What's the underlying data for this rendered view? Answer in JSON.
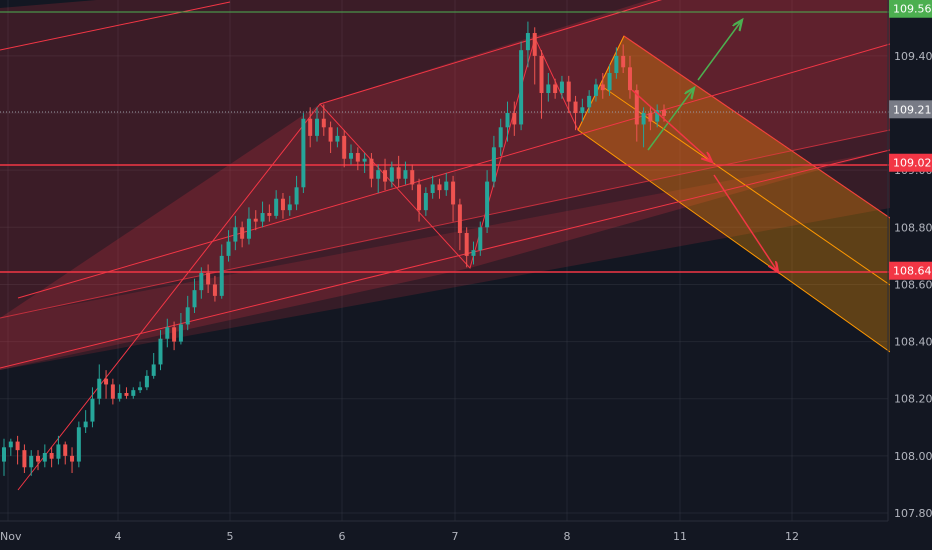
{
  "chart_data": {
    "type": "candlestick",
    "x_axis": {
      "ticks": [
        "Nov",
        "4",
        "5",
        "6",
        "7",
        "8",
        "11",
        "12"
      ]
    },
    "y_axis": {
      "ticks": [
        "107.800",
        "108.000",
        "108.200",
        "108.400",
        "108.600",
        "108.800",
        "109.000",
        "109.200",
        "109.400"
      ],
      "range": [
        107.78,
        109.62
      ]
    },
    "price_tags": [
      {
        "label": "109.565",
        "value": 109.565,
        "color": "#4caf50"
      },
      {
        "label": "109.213",
        "value": 109.213,
        "color": "#787b86"
      },
      {
        "label": "109.026",
        "value": 109.026,
        "color": "#f23645"
      },
      {
        "label": "108.648",
        "value": 108.648,
        "color": "#f23645"
      }
    ],
    "candles": [
      [
        107.98,
        108.03,
        107.93,
        108.06
      ],
      [
        108.03,
        108.05,
        108.0,
        108.06
      ],
      [
        108.05,
        108.02,
        107.97,
        108.07
      ],
      [
        108.02,
        107.96,
        107.94,
        108.04
      ],
      [
        107.96,
        108.0,
        107.93,
        108.02
      ],
      [
        108.0,
        107.98,
        107.95,
        108.02
      ],
      [
        107.98,
        108.01,
        107.96,
        108.04
      ],
      [
        108.01,
        107.99,
        107.96,
        108.03
      ],
      [
        107.99,
        108.04,
        107.97,
        108.07
      ],
      [
        108.04,
        108.0,
        107.97,
        108.05
      ],
      [
        108.0,
        107.98,
        107.94,
        108.03
      ],
      [
        107.98,
        108.1,
        107.96,
        108.12
      ],
      [
        108.1,
        108.12,
        108.08,
        108.16
      ],
      [
        108.12,
        108.2,
        108.1,
        108.24
      ],
      [
        108.2,
        108.27,
        108.18,
        108.32
      ],
      [
        108.27,
        108.25,
        108.2,
        108.3
      ],
      [
        108.25,
        108.2,
        108.18,
        108.27
      ],
      [
        108.2,
        108.22,
        108.19,
        108.25
      ],
      [
        108.22,
        108.21,
        108.2,
        108.24
      ],
      [
        108.21,
        108.23,
        108.2,
        108.24
      ],
      [
        108.23,
        108.24,
        108.22,
        108.26
      ],
      [
        108.24,
        108.28,
        108.23,
        108.3
      ],
      [
        108.28,
        108.32,
        108.27,
        108.36
      ],
      [
        108.32,
        108.41,
        108.3,
        108.44
      ],
      [
        108.41,
        108.45,
        108.38,
        108.48
      ],
      [
        108.45,
        108.4,
        108.37,
        108.47
      ],
      [
        108.4,
        108.46,
        108.39,
        108.5
      ],
      [
        108.46,
        108.52,
        108.44,
        108.56
      ],
      [
        108.52,
        108.58,
        108.5,
        108.62
      ],
      [
        108.58,
        108.64,
        108.55,
        108.66
      ],
      [
        108.64,
        108.6,
        108.57,
        108.67
      ],
      [
        108.6,
        108.56,
        108.54,
        108.63
      ],
      [
        108.56,
        108.7,
        108.55,
        108.74
      ],
      [
        108.7,
        108.75,
        108.68,
        108.79
      ],
      [
        108.75,
        108.8,
        108.72,
        108.84
      ],
      [
        108.8,
        108.76,
        108.73,
        108.82
      ],
      [
        108.76,
        108.83,
        108.74,
        108.87
      ],
      [
        108.83,
        108.82,
        108.79,
        108.86
      ],
      [
        108.82,
        108.85,
        108.8,
        108.89
      ],
      [
        108.85,
        108.84,
        108.82,
        108.88
      ],
      [
        108.84,
        108.9,
        108.83,
        108.93
      ],
      [
        108.9,
        108.86,
        108.83,
        108.92
      ],
      [
        108.86,
        108.88,
        108.84,
        108.91
      ],
      [
        108.88,
        108.94,
        108.86,
        108.98
      ],
      [
        108.94,
        109.18,
        108.92,
        109.2
      ],
      [
        109.18,
        109.12,
        109.08,
        109.22
      ],
      [
        109.12,
        109.18,
        109.1,
        109.22
      ],
      [
        109.18,
        109.15,
        109.12,
        109.23
      ],
      [
        109.15,
        109.1,
        109.06,
        109.17
      ],
      [
        109.1,
        109.12,
        109.08,
        109.15
      ],
      [
        109.12,
        109.04,
        109.01,
        109.14
      ],
      [
        109.04,
        109.06,
        109.02,
        109.09
      ],
      [
        109.06,
        109.03,
        109.0,
        109.08
      ],
      [
        109.03,
        109.04,
        108.99,
        109.06
      ],
      [
        109.04,
        108.97,
        108.94,
        109.06
      ],
      [
        108.97,
        109.0,
        108.92,
        109.02
      ],
      [
        109.0,
        108.96,
        108.93,
        109.04
      ],
      [
        108.96,
        109.01,
        108.94,
        109.03
      ],
      [
        109.01,
        108.97,
        108.94,
        109.05
      ],
      [
        108.97,
        109.0,
        108.95,
        109.03
      ],
      [
        109.0,
        108.95,
        108.93,
        109.02
      ],
      [
        108.95,
        108.86,
        108.82,
        108.97
      ],
      [
        108.86,
        108.92,
        108.84,
        108.94
      ],
      [
        108.92,
        108.95,
        108.9,
        108.98
      ],
      [
        108.95,
        108.93,
        108.9,
        108.97
      ],
      [
        108.93,
        108.96,
        108.91,
        108.99
      ],
      [
        108.96,
        108.88,
        108.82,
        108.98
      ],
      [
        108.88,
        108.78,
        108.72,
        108.9
      ],
      [
        108.78,
        108.7,
        108.66,
        108.8
      ],
      [
        108.7,
        108.72,
        108.67,
        108.75
      ],
      [
        108.72,
        108.8,
        108.7,
        108.82
      ],
      [
        108.8,
        108.96,
        108.78,
        109.0
      ],
      [
        108.96,
        109.08,
        108.94,
        109.12
      ],
      [
        109.08,
        109.15,
        109.05,
        109.18
      ],
      [
        109.15,
        109.2,
        109.1,
        109.24
      ],
      [
        109.2,
        109.16,
        109.12,
        109.24
      ],
      [
        109.16,
        109.42,
        109.14,
        109.45
      ],
      [
        109.42,
        109.48,
        109.36,
        109.52
      ],
      [
        109.48,
        109.4,
        109.3,
        109.5
      ],
      [
        109.4,
        109.27,
        109.18,
        109.42
      ],
      [
        109.27,
        109.3,
        109.24,
        109.34
      ],
      [
        109.3,
        109.27,
        109.25,
        109.32
      ],
      [
        109.27,
        109.31,
        109.25,
        109.33
      ],
      [
        109.31,
        109.24,
        109.2,
        109.33
      ],
      [
        109.24,
        109.2,
        109.14,
        109.26
      ],
      [
        109.2,
        109.22,
        109.17,
        109.25
      ],
      [
        109.22,
        109.26,
        109.2,
        109.28
      ],
      [
        109.26,
        109.3,
        109.24,
        109.32
      ],
      [
        109.3,
        109.28,
        109.25,
        109.34
      ],
      [
        109.28,
        109.34,
        109.26,
        109.37
      ],
      [
        109.34,
        109.4,
        109.32,
        109.43
      ],
      [
        109.4,
        109.36,
        109.34,
        109.44
      ],
      [
        109.36,
        109.28,
        109.25,
        109.4
      ],
      [
        109.28,
        109.16,
        109.1,
        109.3
      ],
      [
        109.16,
        109.2,
        109.08,
        109.22
      ],
      [
        109.2,
        109.17,
        109.14,
        109.22
      ],
      [
        109.17,
        109.21,
        109.15,
        109.23
      ],
      [
        109.21,
        109.19,
        109.17,
        109.23
      ]
    ]
  },
  "colors": {
    "background": "#131722",
    "bull": "#26a69a",
    "bear": "#ef5350",
    "grid": "#363a45",
    "axis_text": "#b2b5be"
  }
}
